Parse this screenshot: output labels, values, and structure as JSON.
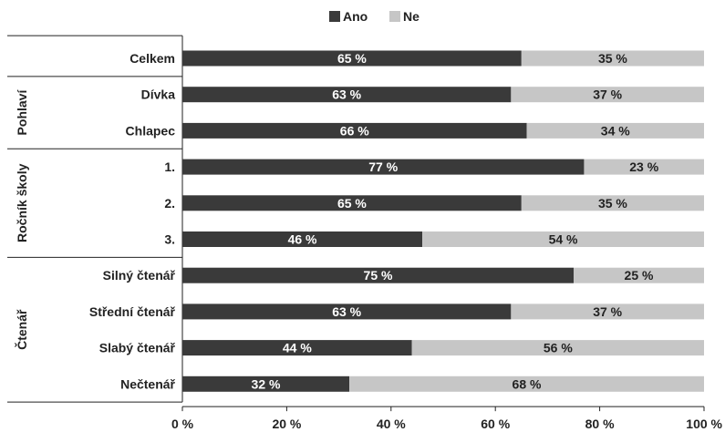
{
  "chart_data": {
    "type": "bar",
    "orientation": "horizontal",
    "stacked": true,
    "legend_position": "top",
    "grid": false,
    "xlim": [
      0,
      100
    ],
    "x_ticks": [
      "0 %",
      "20 %",
      "40 %",
      "60 %",
      "80 %",
      "100 %"
    ],
    "x_tick_values": [
      0,
      20,
      40,
      60,
      80,
      100
    ],
    "categories": [
      "Celkem",
      "Dívka",
      "Chlapec",
      "1.",
      "2.",
      "3.",
      "Silný čtenář",
      "Střední čtenář",
      "Slabý čtenář",
      "Nečtenář"
    ],
    "groups": [
      {
        "label": "",
        "categories": [
          "Celkem"
        ]
      },
      {
        "label": "Pohlaví",
        "categories": [
          "Dívka",
          "Chlapec"
        ]
      },
      {
        "label": "Ročník školy",
        "categories": [
          "1.",
          "2.",
          "3."
        ]
      },
      {
        "label": "Čtenář",
        "categories": [
          "Silný čtenář",
          "Střední čtenář",
          "Slabý čtenář",
          "Nečtenář"
        ]
      }
    ],
    "series": [
      {
        "name": "Ano",
        "color": "#3a3a3a",
        "label_color": "#ffffff",
        "values": [
          65,
          63,
          66,
          77,
          65,
          46,
          75,
          63,
          44,
          32
        ]
      },
      {
        "name": "Ne",
        "color": "#c6c6c6",
        "label_color": "#222222",
        "values": [
          35,
          37,
          34,
          23,
          35,
          54,
          25,
          37,
          56,
          68
        ]
      }
    ],
    "value_suffix": " %"
  }
}
